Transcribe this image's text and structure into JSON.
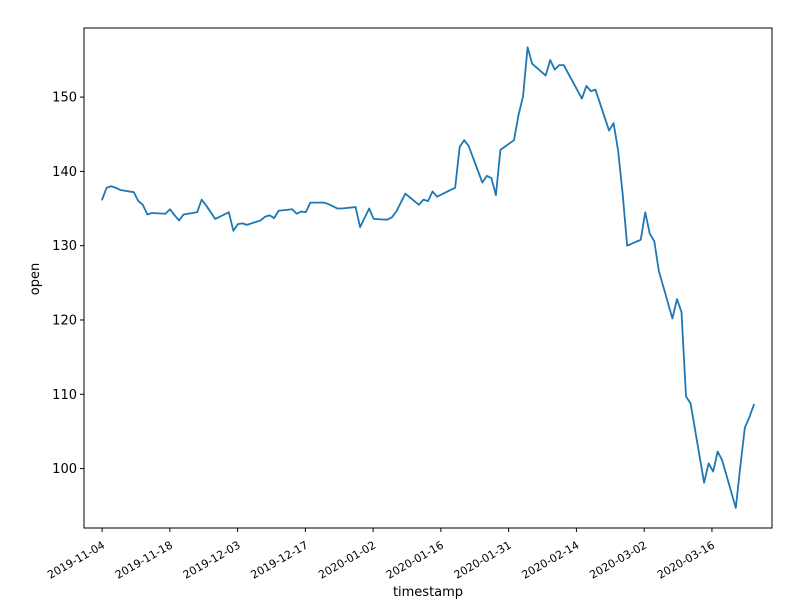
{
  "chart_data": {
    "type": "line",
    "title": "",
    "xlabel": "timestamp",
    "ylabel": "open",
    "x_tick_labels": [
      "2019-11-04",
      "2019-11-18",
      "2019-12-03",
      "2019-12-17",
      "2020-01-02",
      "2020-01-16",
      "2020-01-31",
      "2020-02-14",
      "2020-03-02",
      "2020-03-16"
    ],
    "y_ticks": [
      100,
      110,
      120,
      130,
      140,
      150
    ],
    "ylim": [
      92.0,
      159.3
    ],
    "xlim": [
      "2019-10-31",
      "2020-03-31"
    ],
    "grid": false,
    "line_color": "#1f77b4",
    "series": [
      {
        "x": [
          "2019-11-04",
          "2019-11-05",
          "2019-11-06",
          "2019-11-07",
          "2019-11-08",
          "2019-11-11",
          "2019-11-12",
          "2019-11-13",
          "2019-11-14",
          "2019-11-15",
          "2019-11-18",
          "2019-11-19",
          "2019-11-20",
          "2019-11-21",
          "2019-11-22",
          "2019-11-25",
          "2019-11-26",
          "2019-11-27",
          "2019-11-29",
          "2019-12-02",
          "2019-12-03",
          "2019-12-04",
          "2019-12-05",
          "2019-12-06",
          "2019-12-09",
          "2019-12-10",
          "2019-12-11",
          "2019-12-12",
          "2019-12-13",
          "2019-12-16",
          "2019-12-17",
          "2019-12-18",
          "2019-12-19",
          "2019-12-20",
          "2019-12-23",
          "2019-12-24",
          "2019-12-26",
          "2019-12-27",
          "2019-12-30",
          "2019-12-31",
          "2020-01-02",
          "2020-01-03",
          "2020-01-06",
          "2020-01-07",
          "2020-01-08",
          "2020-01-09",
          "2020-01-10",
          "2020-01-13",
          "2020-01-14",
          "2020-01-15",
          "2020-01-16",
          "2020-01-17",
          "2020-01-21",
          "2020-01-22",
          "2020-01-23",
          "2020-01-24",
          "2020-01-27",
          "2020-01-28",
          "2020-01-29",
          "2020-01-30",
          "2020-01-31",
          "2020-02-03",
          "2020-02-04",
          "2020-02-05",
          "2020-02-06",
          "2020-02-07",
          "2020-02-10",
          "2020-02-11",
          "2020-02-12",
          "2020-02-13",
          "2020-02-14",
          "2020-02-18",
          "2020-02-19",
          "2020-02-20",
          "2020-02-21",
          "2020-02-24",
          "2020-02-25",
          "2020-02-26",
          "2020-02-27",
          "2020-02-28",
          "2020-03-02",
          "2020-03-03",
          "2020-03-04",
          "2020-03-05",
          "2020-03-06",
          "2020-03-09",
          "2020-03-10",
          "2020-03-11",
          "2020-03-12",
          "2020-03-13",
          "2020-03-16",
          "2020-03-17",
          "2020-03-18",
          "2020-03-19",
          "2020-03-20",
          "2020-03-23",
          "2020-03-24",
          "2020-03-25",
          "2020-03-26",
          "2020-03-27"
        ],
        "values": [
          136.2,
          137.8,
          138.0,
          137.8,
          137.5,
          137.2,
          136.0,
          135.5,
          134.2,
          134.4,
          134.3,
          134.9,
          134.1,
          133.4,
          134.2,
          134.5,
          136.2,
          135.4,
          133.6,
          134.5,
          132.0,
          132.9,
          133.0,
          132.8,
          133.4,
          133.9,
          134.1,
          133.7,
          134.7,
          134.9,
          134.3,
          134.6,
          134.5,
          135.8,
          135.8,
          135.6,
          135.0,
          135.0,
          135.2,
          132.5,
          135.0,
          133.6,
          133.5,
          133.8,
          134.6,
          135.8,
          137.0,
          135.5,
          136.2,
          136.0,
          137.3,
          136.6,
          137.8,
          143.3,
          144.2,
          143.4,
          138.5,
          139.4,
          139.1,
          136.8,
          142.9,
          144.2,
          147.6,
          150.1,
          156.7,
          154.5,
          152.9,
          155.0,
          153.7,
          154.3,
          154.3,
          149.8,
          151.5,
          150.8,
          151.0,
          145.5,
          146.5,
          142.8,
          137.0,
          130.0,
          130.8,
          134.5,
          131.6,
          130.6,
          126.6,
          120.2,
          122.8,
          121.1,
          109.7,
          108.8,
          98.1,
          100.7,
          99.6,
          102.3,
          101.1,
          94.7,
          100.3,
          105.5,
          106.9,
          108.6
        ]
      }
    ]
  }
}
